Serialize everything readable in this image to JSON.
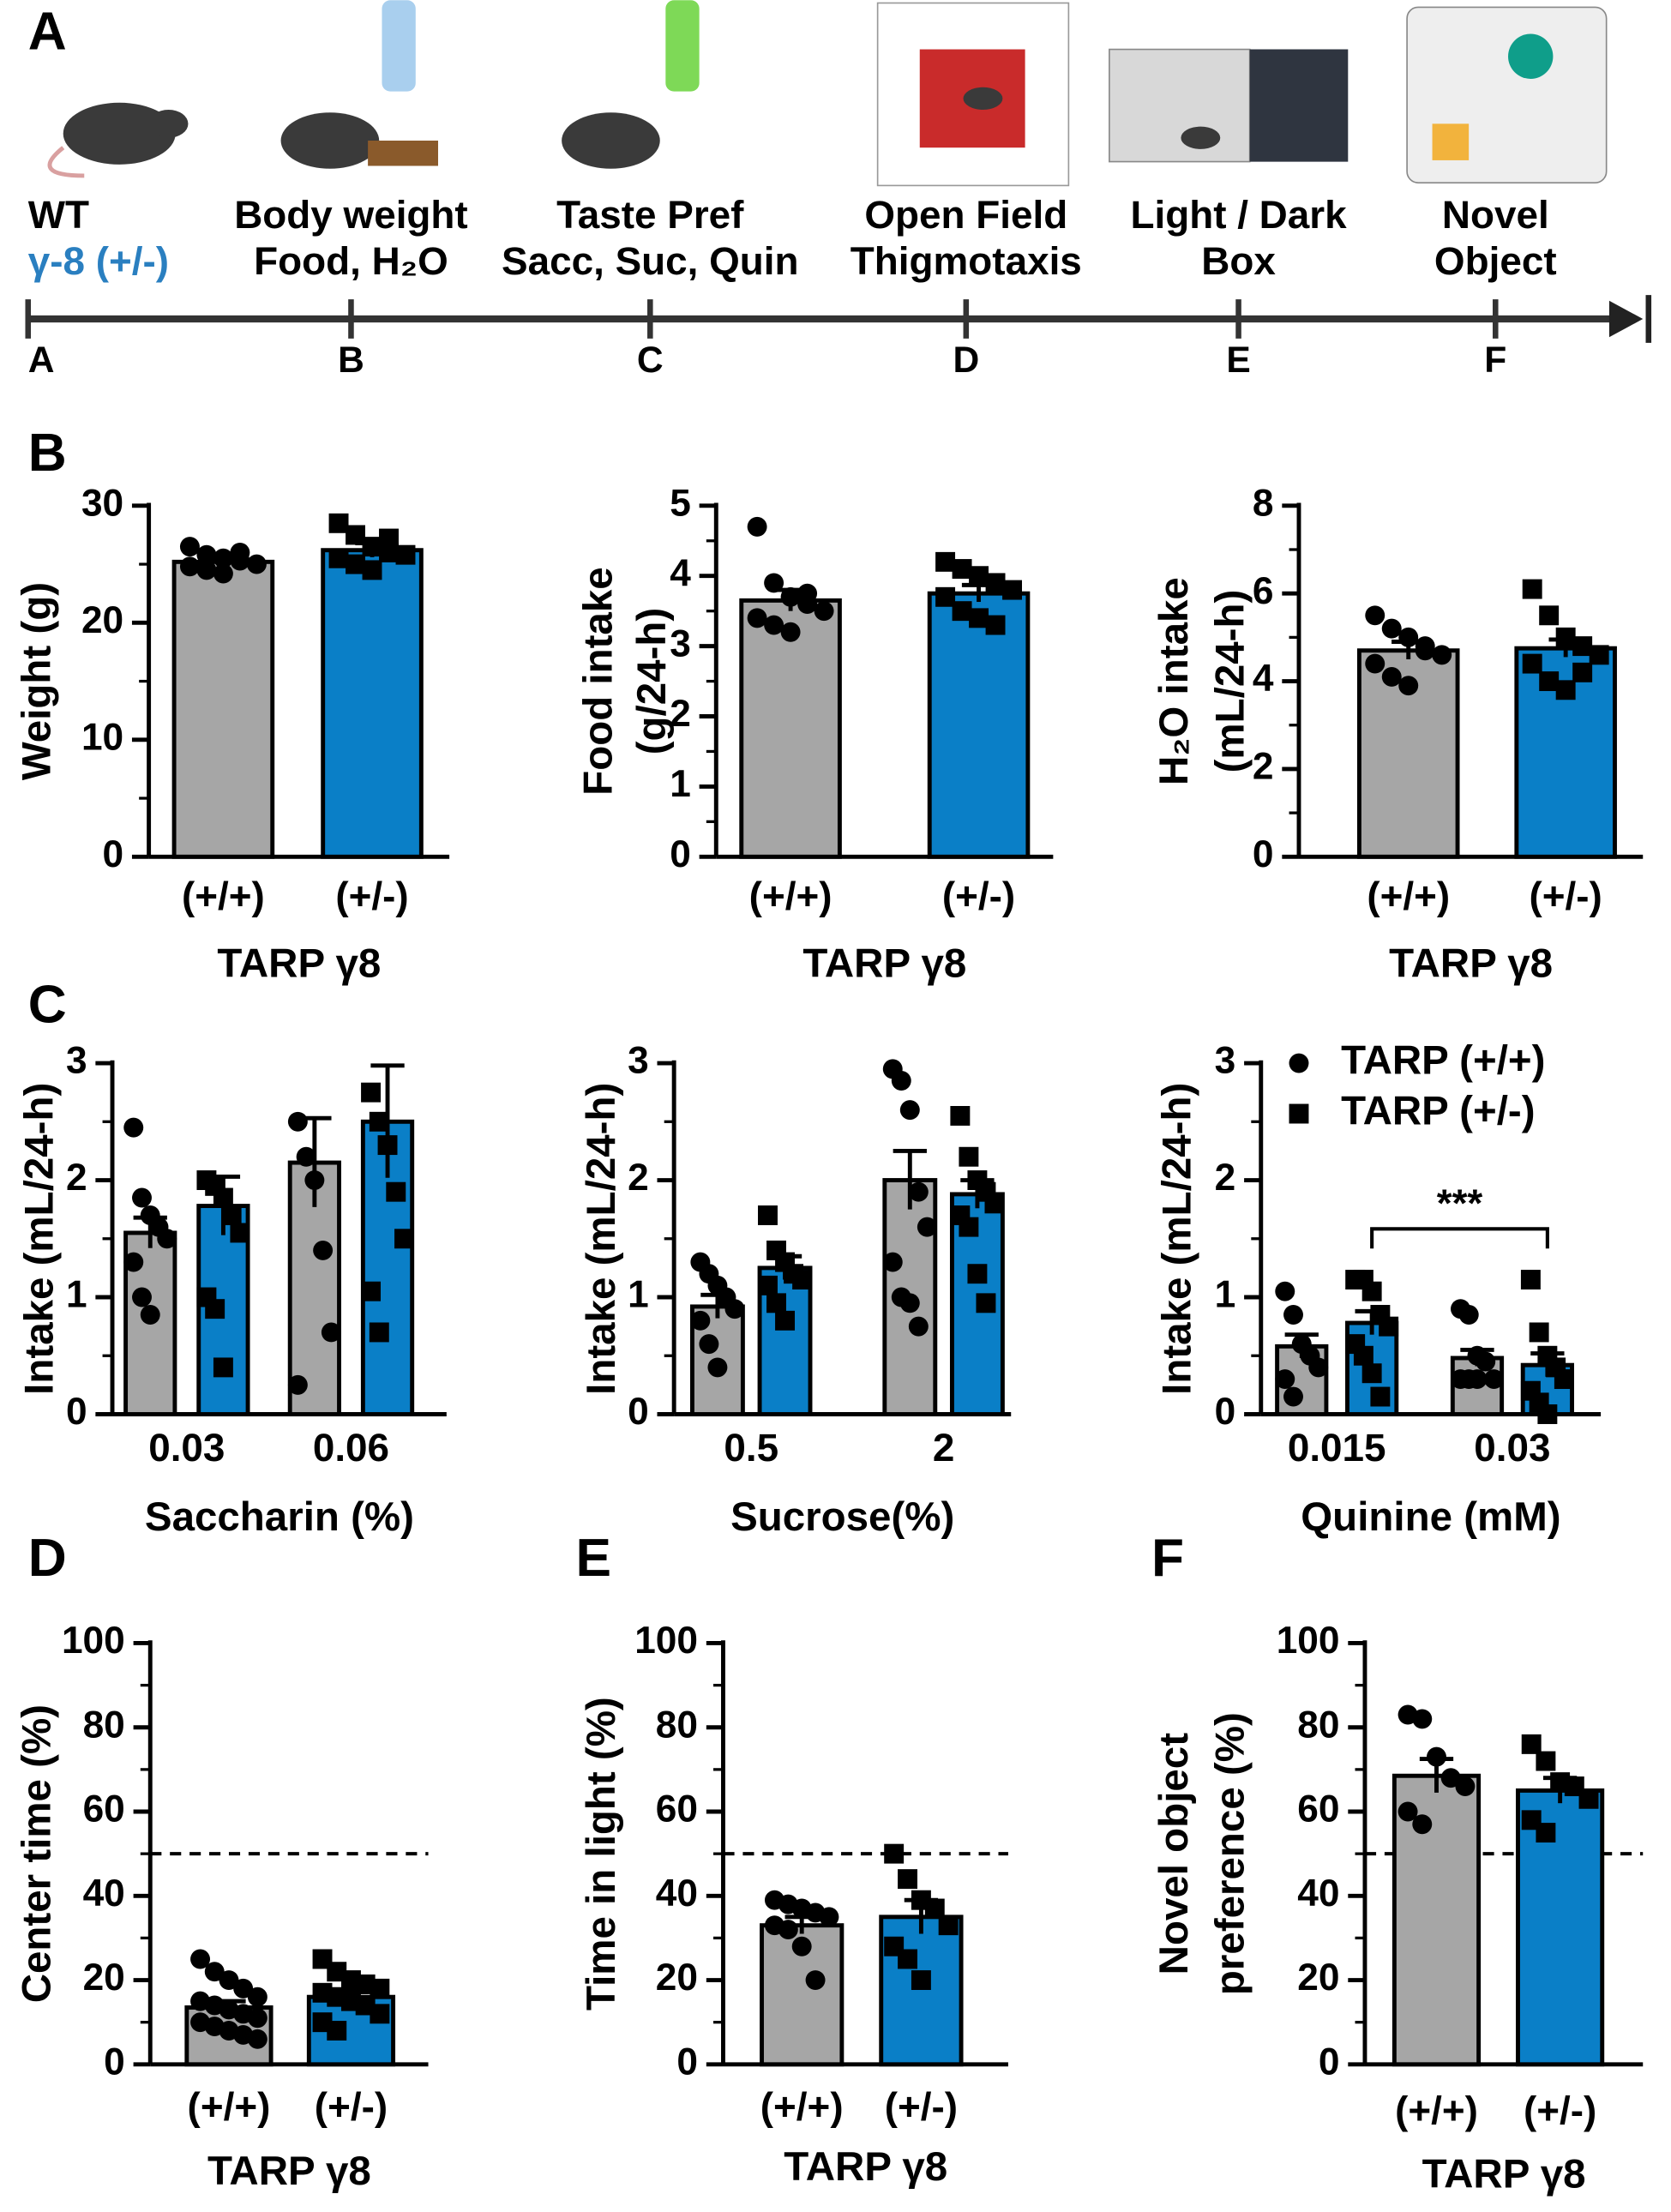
{
  "panel_labels": [
    "A",
    "B",
    "C",
    "D",
    "E",
    "F"
  ],
  "timeline": [
    {
      "lines": [
        "WT",
        "γ-8 (+/-)"
      ],
      "letter": "A"
    },
    {
      "lines": [
        "Body weight",
        "Food, H₂O"
      ],
      "letter": "B"
    },
    {
      "lines": [
        "Taste Pref",
        "Sacc, Suc, Quin"
      ],
      "letter": "C"
    },
    {
      "lines": [
        "Open Field",
        "Thigmotaxis"
      ],
      "letter": "D"
    },
    {
      "lines": [
        "Light / Dark",
        "Box"
      ],
      "letter": "E"
    },
    {
      "lines": [
        "Novel",
        "Object"
      ],
      "letter": "F"
    }
  ],
  "chart_data": [
    {
      "type": "bar",
      "ylabel": [
        "Weight (g)"
      ],
      "xlabel": "TARP γ8",
      "categories": [
        "(+/+)",
        "(+/-)"
      ],
      "colors": [
        "#a6a6a6",
        "#0a7fc7"
      ],
      "values": [
        25.2,
        26.2
      ],
      "errors": [
        0.5,
        0.6
      ],
      "points": [
        [
          26.5,
          25.8,
          25.5,
          25.3,
          25,
          24.8,
          24.5,
          24.2,
          26
        ],
        [
          28.5,
          27.5,
          26.5,
          26,
          25.8,
          25.5,
          25,
          24.5,
          27.2
        ]
      ],
      "ylim": [
        0,
        30
      ],
      "yticks": [
        0,
        10,
        20,
        30
      ]
    },
    {
      "type": "bar",
      "ylabel": [
        "Food intake",
        "(g/24-h)"
      ],
      "xlabel": "TARP γ8",
      "categories": [
        "(+/+)",
        "(+/-)"
      ],
      "colors": [
        "#a6a6a6",
        "#0a7fc7"
      ],
      "values": [
        3.65,
        3.75
      ],
      "errors": [
        0.15,
        0.12
      ],
      "points": [
        [
          4.7,
          3.9,
          3.7,
          3.6,
          3.5,
          3.4,
          3.3,
          3.2,
          3.75
        ],
        [
          4.2,
          4.1,
          4.0,
          3.9,
          3.8,
          3.7,
          3.5,
          3.4,
          3.3
        ]
      ],
      "ylim": [
        0,
        5
      ],
      "yticks": [
        0,
        1,
        2,
        3,
        4,
        5
      ]
    },
    {
      "type": "bar",
      "ylabel": [
        "H₂O intake",
        "(mL/24-h)"
      ],
      "xlabel": "TARP γ8",
      "categories": [
        "(+/+)",
        "(+/-)"
      ],
      "colors": [
        "#a6a6a6",
        "#0a7fc7"
      ],
      "values": [
        4.7,
        4.75
      ],
      "errors": [
        0.2,
        0.2
      ],
      "points": [
        [
          5.5,
          5.2,
          5.0,
          4.8,
          4.6,
          4.4,
          4.1,
          3.9,
          4.7
        ],
        [
          6.1,
          5.5,
          5.0,
          4.8,
          4.6,
          4.4,
          4.0,
          3.8,
          4.2
        ]
      ],
      "ylim": [
        0,
        8
      ],
      "yticks": [
        0,
        2,
        4,
        6,
        8
      ]
    },
    {
      "type": "bar",
      "ylabel": [
        "Intake (mL/24-h)"
      ],
      "xlabel": "Saccharin (%)",
      "categories": [
        "0.03",
        "0.06"
      ],
      "series": [
        {
          "color": "#a6a6a6",
          "values": [
            1.55,
            2.15
          ],
          "errors": [
            0.13,
            0.38
          ],
          "points": [
            [
              2.45,
              1.85,
              1.7,
              1.6,
              1.5,
              1.3,
              1.0,
              0.85
            ],
            [
              2.5,
              2.2,
              2.0,
              1.4,
              0.7,
              0.25
            ]
          ]
        },
        {
          "color": "#0a7fc7",
          "values": [
            1.78,
            2.5
          ],
          "errors": [
            0.25,
            0.48
          ],
          "points": [
            [
              2.0,
              1.95,
              1.85,
              1.7,
              1.55,
              1.0,
              0.9,
              0.4
            ],
            [
              2.75,
              2.5,
              2.3,
              1.9,
              1.5,
              1.05,
              0.7
            ]
          ]
        }
      ],
      "ylim": [
        0,
        3
      ],
      "yticks": [
        0,
        1,
        2,
        3
      ]
    },
    {
      "type": "bar",
      "ylabel": [
        "Intake (mL/24-h)"
      ],
      "xlabel": "Sucrose(%)",
      "categories": [
        "0.5",
        "2"
      ],
      "series": [
        {
          "color": "#a6a6a6",
          "values": [
            0.92,
            2.0
          ],
          "errors": [
            0.1,
            0.25
          ],
          "points": [
            [
              1.3,
              1.2,
              1.1,
              1.0,
              0.9,
              0.8,
              0.6,
              0.4
            ],
            [
              2.95,
              2.85,
              2.6,
              1.9,
              1.6,
              1.3,
              1.0,
              0.95,
              0.75
            ]
          ]
        },
        {
          "color": "#0a7fc7",
          "values": [
            1.25,
            1.88
          ],
          "errors": [
            0.1,
            0.12
          ],
          "points": [
            [
              1.7,
              1.4,
              1.3,
              1.2,
              1.15,
              1.1,
              0.95,
              0.8
            ],
            [
              2.55,
              2.2,
              2.0,
              1.9,
              1.8,
              1.7,
              1.6,
              1.2,
              0.95
            ]
          ]
        }
      ],
      "ylim": [
        0,
        3
      ],
      "yticks": [
        0,
        1,
        2,
        3
      ]
    },
    {
      "type": "bar",
      "ylabel": [
        "Intake (mL/24-h)"
      ],
      "xlabel": "Quinine (mM)",
      "categories": [
        "0.015",
        "0.03"
      ],
      "significance": "***",
      "series": [
        {
          "name": "TARP (+/+)",
          "color": "#a6a6a6",
          "values": [
            0.58,
            0.48
          ],
          "errors": [
            0.1,
            0.07
          ],
          "points": [
            [
              1.05,
              0.85,
              0.6,
              0.5,
              0.4,
              0.3,
              0.15
            ],
            [
              0.9,
              0.85,
              0.5,
              0.45,
              0.3,
              0.3,
              0.3,
              0.3
            ]
          ]
        },
        {
          "name": "TARP (+/-)",
          "color": "#0a7fc7",
          "values": [
            0.78,
            0.42
          ],
          "errors": [
            0.1,
            0.1
          ],
          "points": [
            [
              1.15,
              1.15,
              1.05,
              0.85,
              0.75,
              0.6,
              0.5,
              0.35,
              0.15
            ],
            [
              1.15,
              0.7,
              0.5,
              0.4,
              0.3,
              0.2,
              0.1,
              0.0
            ]
          ]
        }
      ],
      "ylim": [
        0,
        3
      ],
      "yticks": [
        0,
        1,
        2,
        3
      ]
    },
    {
      "type": "bar",
      "ylabel": [
        "Center time (%)"
      ],
      "xlabel": "TARP γ8",
      "categories": [
        "(+/+)",
        "(+/-)"
      ],
      "colors": [
        "#a6a6a6",
        "#0a7fc7"
      ],
      "refline": 50,
      "values": [
        13.5,
        16
      ],
      "errors": [
        1.5,
        1.2
      ],
      "points": [
        [
          25,
          22,
          20,
          18,
          16,
          15,
          14,
          13,
          12,
          11,
          10,
          9,
          8,
          7,
          6
        ],
        [
          25,
          22,
          20,
          19,
          18,
          17,
          16,
          15,
          14,
          12,
          10,
          8
        ]
      ],
      "ylim": [
        0,
        100
      ],
      "yticks": [
        0,
        20,
        40,
        60,
        80,
        100
      ]
    },
    {
      "type": "bar",
      "ylabel": [
        "Time in light (%)"
      ],
      "xlabel": "TARP γ8",
      "categories": [
        "(+/+)",
        "(+/-)"
      ],
      "colors": [
        "#a6a6a6",
        "#0a7fc7"
      ],
      "refline": 50,
      "values": [
        33,
        35
      ],
      "errors": [
        2,
        4
      ],
      "points": [
        [
          39,
          38,
          37,
          36,
          35,
          33,
          32,
          28,
          20
        ],
        [
          50,
          44,
          39,
          37,
          33,
          28,
          25,
          20
        ]
      ],
      "ylim": [
        0,
        100
      ],
      "yticks": [
        0,
        20,
        40,
        60,
        80,
        100
      ]
    },
    {
      "type": "bar",
      "ylabel": [
        "Novel object",
        "preference (%)"
      ],
      "xlabel": "TARP γ8",
      "categories": [
        "(+/+)",
        "(+/-)"
      ],
      "colors": [
        "#a6a6a6",
        "#0a7fc7"
      ],
      "refline": 50,
      "values": [
        68.5,
        65
      ],
      "errors": [
        4,
        3
      ],
      "points": [
        [
          83,
          82,
          73,
          68,
          66,
          60,
          57
        ],
        [
          76,
          72,
          67,
          66,
          63,
          58,
          55
        ]
      ],
      "ylim": [
        0,
        100
      ],
      "yticks": [
        0,
        20,
        40,
        60,
        80,
        100
      ]
    }
  ]
}
